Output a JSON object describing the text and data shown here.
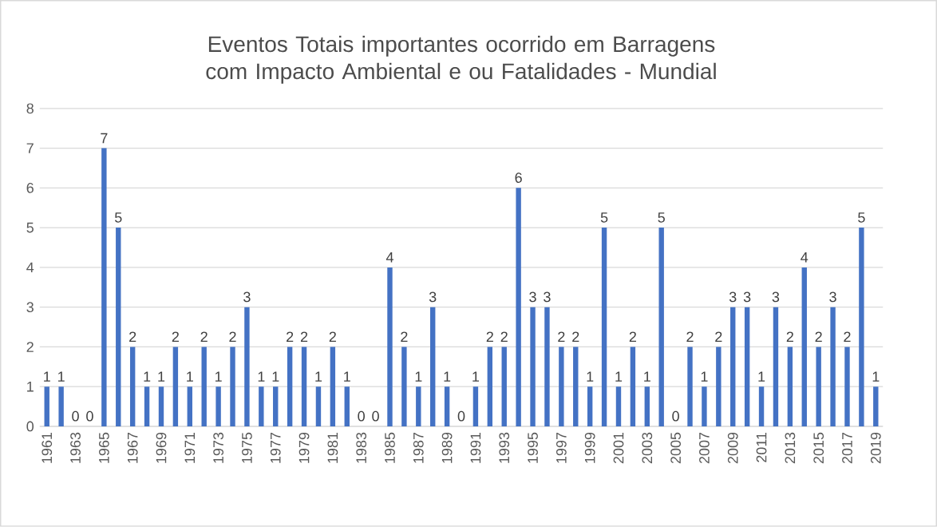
{
  "chart_data": {
    "type": "bar",
    "title": "Eventos Totais importantes ocorrido em Barragens com Impacto Ambiental e ou Fatalidades - Mundial",
    "categories": [
      "1961",
      null,
      "1963",
      null,
      "1965",
      null,
      "1967",
      null,
      "1969",
      null,
      "1971",
      null,
      "1973",
      null,
      "1975",
      null,
      "1977",
      null,
      "1979",
      null,
      "1981",
      null,
      "1983",
      null,
      "1985",
      null,
      "1987",
      null,
      "1989",
      null,
      "1991",
      null,
      "1993",
      null,
      "1995",
      null,
      "1997",
      null,
      "1999",
      null,
      "2001",
      null,
      "2003",
      null,
      "2005",
      null,
      "2007",
      null,
      "2009",
      null,
      "2011",
      null,
      "2013",
      null,
      "2015",
      null,
      "2017",
      null,
      "2019"
    ],
    "values": [
      1,
      1,
      0,
      0,
      7,
      5,
      2,
      1,
      1,
      2,
      1,
      2,
      1,
      2,
      3,
      1,
      1,
      2,
      2,
      1,
      2,
      1,
      0,
      0,
      4,
      2,
      1,
      3,
      1,
      0,
      1,
      2,
      2,
      6,
      3,
      3,
      2,
      2,
      1,
      5,
      1,
      2,
      1,
      5,
      0,
      2,
      1,
      2,
      3,
      3,
      1,
      3,
      2,
      4,
      2,
      3,
      2,
      5,
      1
    ],
    "color": "#4472c4",
    "ylim": [
      0,
      8
    ],
    "yticks": [
      0,
      1,
      2,
      3,
      4,
      5,
      6,
      7,
      8
    ],
    "grid": "y",
    "data_labels": true
  }
}
